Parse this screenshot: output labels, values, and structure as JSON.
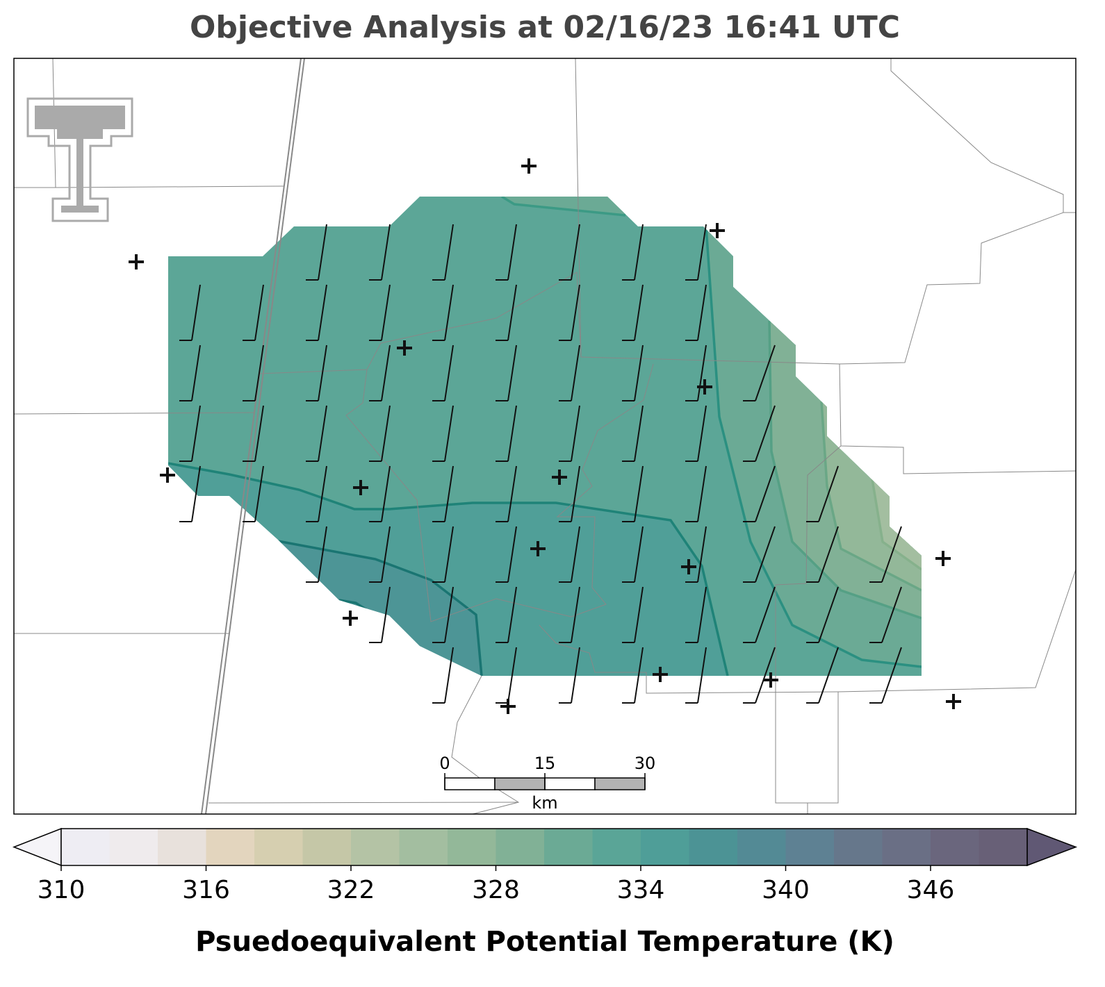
{
  "title": "Objective Analysis at 02/16/23 16:41 UTC",
  "scale_bar": {
    "ticks": [
      0,
      15,
      30
    ],
    "unit": "km"
  },
  "colorbar": {
    "label": "Psuedoequivalent Potential Temperature (K)",
    "lim": [
      310,
      350
    ],
    "ticks": [
      310,
      316,
      322,
      328,
      334,
      340,
      346
    ],
    "levels": [
      310,
      312,
      314,
      316,
      318,
      320,
      322,
      324,
      326,
      328,
      330,
      332,
      334,
      336,
      338,
      340,
      342,
      344,
      346,
      348,
      350
    ],
    "colors": [
      "#eeedf3",
      "#efebed",
      "#e8e1dc",
      "#e3d5be",
      "#d6cfb0",
      "#c5c7a7",
      "#b4c3a5",
      "#a3bea0",
      "#93b899",
      "#81b196",
      "#6baa95",
      "#5aa597",
      "#4f9e98",
      "#4c9395",
      "#538a95",
      "#5e8193",
      "#66778b",
      "#6a6f85",
      "#6a667d",
      "#686077"
    ],
    "extend_colors": [
      "#f5f4f8",
      "#605874"
    ]
  }
}
